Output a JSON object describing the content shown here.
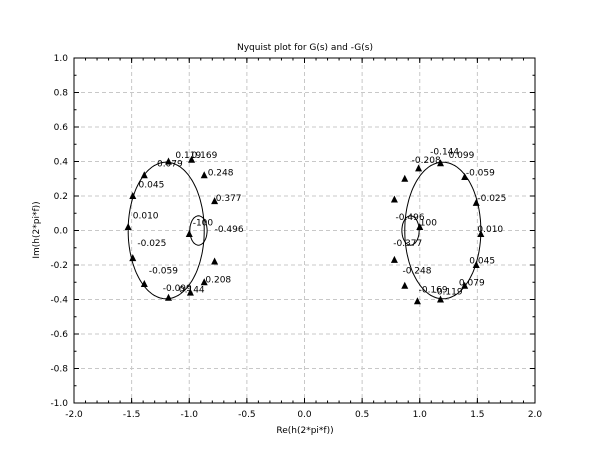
{
  "chart_data": {
    "type": "line",
    "title": "Nyquist plot for G(s) and -G(s)",
    "xlabel": "Re(h(2*pi*f))",
    "ylabel": "Im(h(2*pi*f))",
    "xlim": [
      -2.0,
      2.0
    ],
    "ylim": [
      -1.0,
      1.0
    ],
    "x_ticks": [
      "-2.0",
      "-1.5",
      "-1.0",
      "-0.5",
      "0.0",
      "0.5",
      "1.0",
      "1.5",
      "2.0"
    ],
    "y_ticks": [
      "-1.0",
      "-0.8",
      "-0.6",
      "-0.4",
      "-0.2",
      "0.0",
      "0.2",
      "0.4",
      "0.6",
      "0.8",
      "1.0"
    ],
    "grid": true,
    "curve_params": {
      "left": {
        "center": [
          -1.2,
          0.0
        ],
        "radius": 0.33,
        "f_range": [
          -0.5,
          0.5
        ]
      },
      "right": {
        "center": [
          1.2,
          0.0
        ],
        "radius": 0.33,
        "f_range": [
          -0.5,
          0.5
        ]
      }
    },
    "series": [
      {
        "arrows": [
          [
            -1.18,
            0.4
          ],
          [
            -1.39,
            0.32
          ],
          [
            -1.49,
            0.2
          ],
          [
            -1.53,
            0.02
          ],
          [
            -1.49,
            -0.16
          ],
          [
            -1.39,
            -0.31
          ],
          [
            -1.18,
            -0.39
          ],
          [
            -0.99,
            -0.36
          ],
          [
            -0.87,
            -0.3
          ],
          [
            -0.78,
            -0.18
          ],
          [
            -0.78,
            0.17
          ],
          [
            -0.87,
            0.32
          ],
          [
            -0.98,
            0.41
          ],
          [
            -1.0,
            -0.02
          ]
        ],
        "freq_labels": [
          {
            "text": "0.119",
            "x": -1.12,
            "y": 0.42
          },
          {
            "text": "0.169",
            "x": -0.98,
            "y": 0.42
          },
          {
            "text": "0.079",
            "x": -1.28,
            "y": 0.37
          },
          {
            "text": "0.248",
            "x": -0.84,
            "y": 0.32
          },
          {
            "text": "0.045",
            "x": -1.44,
            "y": 0.25
          },
          {
            "text": "0.377",
            "x": -0.77,
            "y": 0.17
          },
          {
            "text": "0.010",
            "x": -1.49,
            "y": 0.07
          },
          {
            "text": "-100",
            "x": -0.97,
            "y": 0.03
          },
          {
            "text": "-0.496",
            "x": -0.78,
            "y": -0.01
          },
          {
            "text": "-0.025",
            "x": -1.45,
            "y": -0.09
          },
          {
            "text": "-0.059",
            "x": -1.35,
            "y": -0.25
          },
          {
            "text": "0.208",
            "x": -0.86,
            "y": -0.3
          },
          {
            "text": "-0.099",
            "x": -1.23,
            "y": -0.35
          },
          {
            "text": "0.144",
            "x": -1.09,
            "y": -0.36
          }
        ]
      },
      {
        "arrows": [
          [
            1.18,
            -0.4
          ],
          [
            1.39,
            -0.32
          ],
          [
            1.49,
            -0.2
          ],
          [
            1.53,
            -0.02
          ],
          [
            1.49,
            0.16
          ],
          [
            1.39,
            0.31
          ],
          [
            1.18,
            0.39
          ],
          [
            0.99,
            0.36
          ],
          [
            0.87,
            0.3
          ],
          [
            0.78,
            0.18
          ],
          [
            0.78,
            -0.17
          ],
          [
            0.87,
            -0.32
          ],
          [
            0.98,
            -0.41
          ],
          [
            1.0,
            0.02
          ]
        ],
        "freq_labels": [
          {
            "text": "-0.144",
            "x": 1.09,
            "y": 0.44
          },
          {
            "text": "0.099",
            "x": 1.25,
            "y": 0.42
          },
          {
            "text": "-0.208",
            "x": 0.93,
            "y": 0.39
          },
          {
            "text": "-0.059",
            "x": 1.4,
            "y": 0.32
          },
          {
            "text": "-0.025",
            "x": 1.5,
            "y": 0.17
          },
          {
            "text": "-0.496",
            "x": 0.79,
            "y": 0.06
          },
          {
            "text": "100",
            "x": 1.0,
            "y": 0.03
          },
          {
            "text": "0.010",
            "x": 1.5,
            "y": -0.01
          },
          {
            "text": "-0.377",
            "x": 0.77,
            "y": -0.09
          },
          {
            "text": "0.045",
            "x": 1.43,
            "y": -0.19
          },
          {
            "text": "-0.248",
            "x": 0.85,
            "y": -0.25
          },
          {
            "text": "0.079",
            "x": 1.34,
            "y": -0.32
          },
          {
            "text": "-0.169",
            "x": 0.99,
            "y": -0.36
          },
          {
            "text": "-0.119",
            "x": 1.12,
            "y": -0.37
          }
        ]
      }
    ]
  }
}
